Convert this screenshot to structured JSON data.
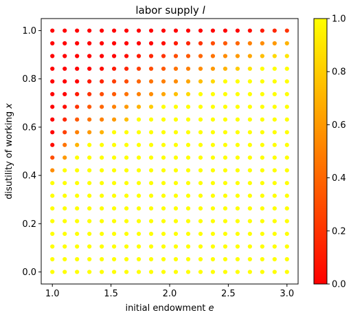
{
  "chart_data": {
    "type": "scatter",
    "title_main": "labor supply ",
    "title_var": "l",
    "xlabel_main": "initial endowment ",
    "xlabel_var": "e",
    "ylabel_main": "disutility of working ",
    "ylabel_var": "x",
    "xlim": [
      0.905,
      3.095
    ],
    "ylim": [
      -0.05,
      1.05
    ],
    "x_ticks": [
      1.0,
      1.5,
      2.0,
      2.5,
      3.0
    ],
    "x_tick_labels": [
      "1.0",
      "1.5",
      "2.0",
      "2.5",
      "3.0"
    ],
    "y_ticks": [
      0.0,
      0.2,
      0.4,
      0.6,
      0.8,
      1.0
    ],
    "y_tick_labels": [
      "0.0",
      "0.2",
      "0.4",
      "0.6",
      "0.8",
      "1.0"
    ],
    "grid": false,
    "x_values": [
      1.0,
      1.1053,
      1.2105,
      1.3158,
      1.4211,
      1.5263,
      1.6316,
      1.7368,
      1.8421,
      1.9474,
      2.0526,
      2.1579,
      2.2632,
      2.3684,
      2.4737,
      2.5789,
      2.6842,
      2.7895,
      2.8947,
      3.0
    ],
    "y_values": [
      0.0,
      0.0526,
      0.1053,
      0.1579,
      0.2105,
      0.2632,
      0.3158,
      0.3684,
      0.4211,
      0.4737,
      0.5263,
      0.5789,
      0.6316,
      0.6842,
      0.7368,
      0.7895,
      0.8421,
      0.8947,
      0.9474,
      1.0
    ],
    "labor_grid_note": "rows by y (0 → 1), columns by x (1 → 3)",
    "labor": [
      [
        1,
        1,
        1,
        1,
        1,
        1,
        1,
        1,
        1,
        1,
        1,
        1,
        1,
        1,
        1,
        1,
        1,
        1,
        1,
        1
      ],
      [
        1,
        1,
        1,
        1,
        1,
        1,
        1,
        1,
        1,
        1,
        1,
        1,
        1,
        1,
        1,
        1,
        1,
        1,
        1,
        1
      ],
      [
        1,
        1,
        1,
        1,
        1,
        1,
        1,
        1,
        1,
        1,
        1,
        1,
        1,
        1,
        1,
        1,
        1,
        1,
        1,
        1
      ],
      [
        1,
        1,
        1,
        1,
        1,
        1,
        1,
        1,
        1,
        1,
        1,
        1,
        1,
        1,
        1,
        1,
        1,
        1,
        1,
        1
      ],
      [
        1,
        1,
        1,
        1,
        1,
        1,
        1,
        1,
        1,
        1,
        1,
        1,
        1,
        1,
        1,
        1,
        1,
        1,
        1,
        1
      ],
      [
        1,
        1,
        1,
        1,
        1,
        1,
        1,
        1,
        1,
        1,
        1,
        1,
        1,
        1,
        1,
        1,
        1,
        1,
        1,
        1
      ],
      [
        1,
        1,
        1,
        1,
        1,
        1,
        1,
        1,
        1,
        1,
        1,
        1,
        1,
        1,
        1,
        1,
        1,
        1,
        1,
        1
      ],
      [
        1,
        1,
        1,
        1,
        1,
        1,
        1,
        1,
        1,
        1,
        1,
        1,
        1,
        1,
        1,
        1,
        1,
        1,
        1,
        1
      ],
      [
        0.55,
        1,
        1,
        1,
        1,
        1,
        1,
        1,
        1,
        1,
        1,
        1,
        1,
        1,
        1,
        1,
        1,
        1,
        1,
        1
      ],
      [
        0.3,
        0.6,
        1,
        1,
        1,
        1,
        1,
        1,
        1,
        1,
        1,
        1,
        1,
        1,
        1,
        1,
        1,
        1,
        1,
        1
      ],
      [
        0.05,
        0.45,
        0.7,
        1,
        1,
        1,
        1,
        1,
        1,
        1,
        1,
        1,
        1,
        1,
        1,
        1,
        1,
        1,
        1,
        1
      ],
      [
        0,
        0.25,
        0.5,
        0.6,
        0.7,
        1,
        1,
        1,
        1,
        1,
        1,
        1,
        1,
        1,
        1,
        1,
        1,
        1,
        1,
        1
      ],
      [
        0,
        0.15,
        0.35,
        0.45,
        0.5,
        0.6,
        0.75,
        1,
        1,
        1,
        1,
        1,
        1,
        1,
        1,
        1,
        1,
        1,
        1,
        1
      ],
      [
        0,
        0.05,
        0.2,
        0.35,
        0.4,
        0.5,
        0.6,
        0.7,
        0.8,
        1,
        1,
        1,
        1,
        1,
        1,
        1,
        1,
        1,
        1,
        1
      ],
      [
        0,
        0,
        0.1,
        0.2,
        0.3,
        0.35,
        0.45,
        0.5,
        0.55,
        0.65,
        0.75,
        0.85,
        1,
        1,
        1,
        1,
        1,
        1,
        1,
        1
      ],
      [
        0,
        0,
        0,
        0.1,
        0.15,
        0.25,
        0.3,
        0.4,
        0.45,
        0.5,
        0.55,
        0.65,
        0.75,
        0.85,
        1,
        1,
        1,
        1,
        1,
        1
      ],
      [
        0,
        0,
        0,
        0,
        0.05,
        0.1,
        0.15,
        0.25,
        0.3,
        0.35,
        0.45,
        0.5,
        0.55,
        0.6,
        0.7,
        0.8,
        0.9,
        1,
        1,
        1
      ],
      [
        0,
        0,
        0,
        0,
        0,
        0,
        0.05,
        0.1,
        0.15,
        0.2,
        0.3,
        0.35,
        0.4,
        0.45,
        0.55,
        0.6,
        0.65,
        0.75,
        0.85,
        0.9
      ],
      [
        0,
        0,
        0,
        0,
        0,
        0,
        0,
        0,
        0,
        0.05,
        0.1,
        0.15,
        0.2,
        0.3,
        0.35,
        0.4,
        0.5,
        0.55,
        0.6,
        0.7
      ],
      [
        0,
        0,
        0,
        0,
        0,
        0,
        0,
        0,
        0,
        0,
        0,
        0,
        0,
        0,
        0,
        0,
        0.05,
        0.1,
        0.15,
        0.2
      ]
    ],
    "colorbar": {
      "colormap": "autumn",
      "range": [
        0.0,
        1.0
      ],
      "ticks": [
        0.0,
        0.2,
        0.4,
        0.6,
        0.8,
        1.0
      ],
      "tick_labels": [
        "0.0",
        "0.2",
        "0.4",
        "0.6",
        "0.8",
        "1.0"
      ]
    }
  }
}
